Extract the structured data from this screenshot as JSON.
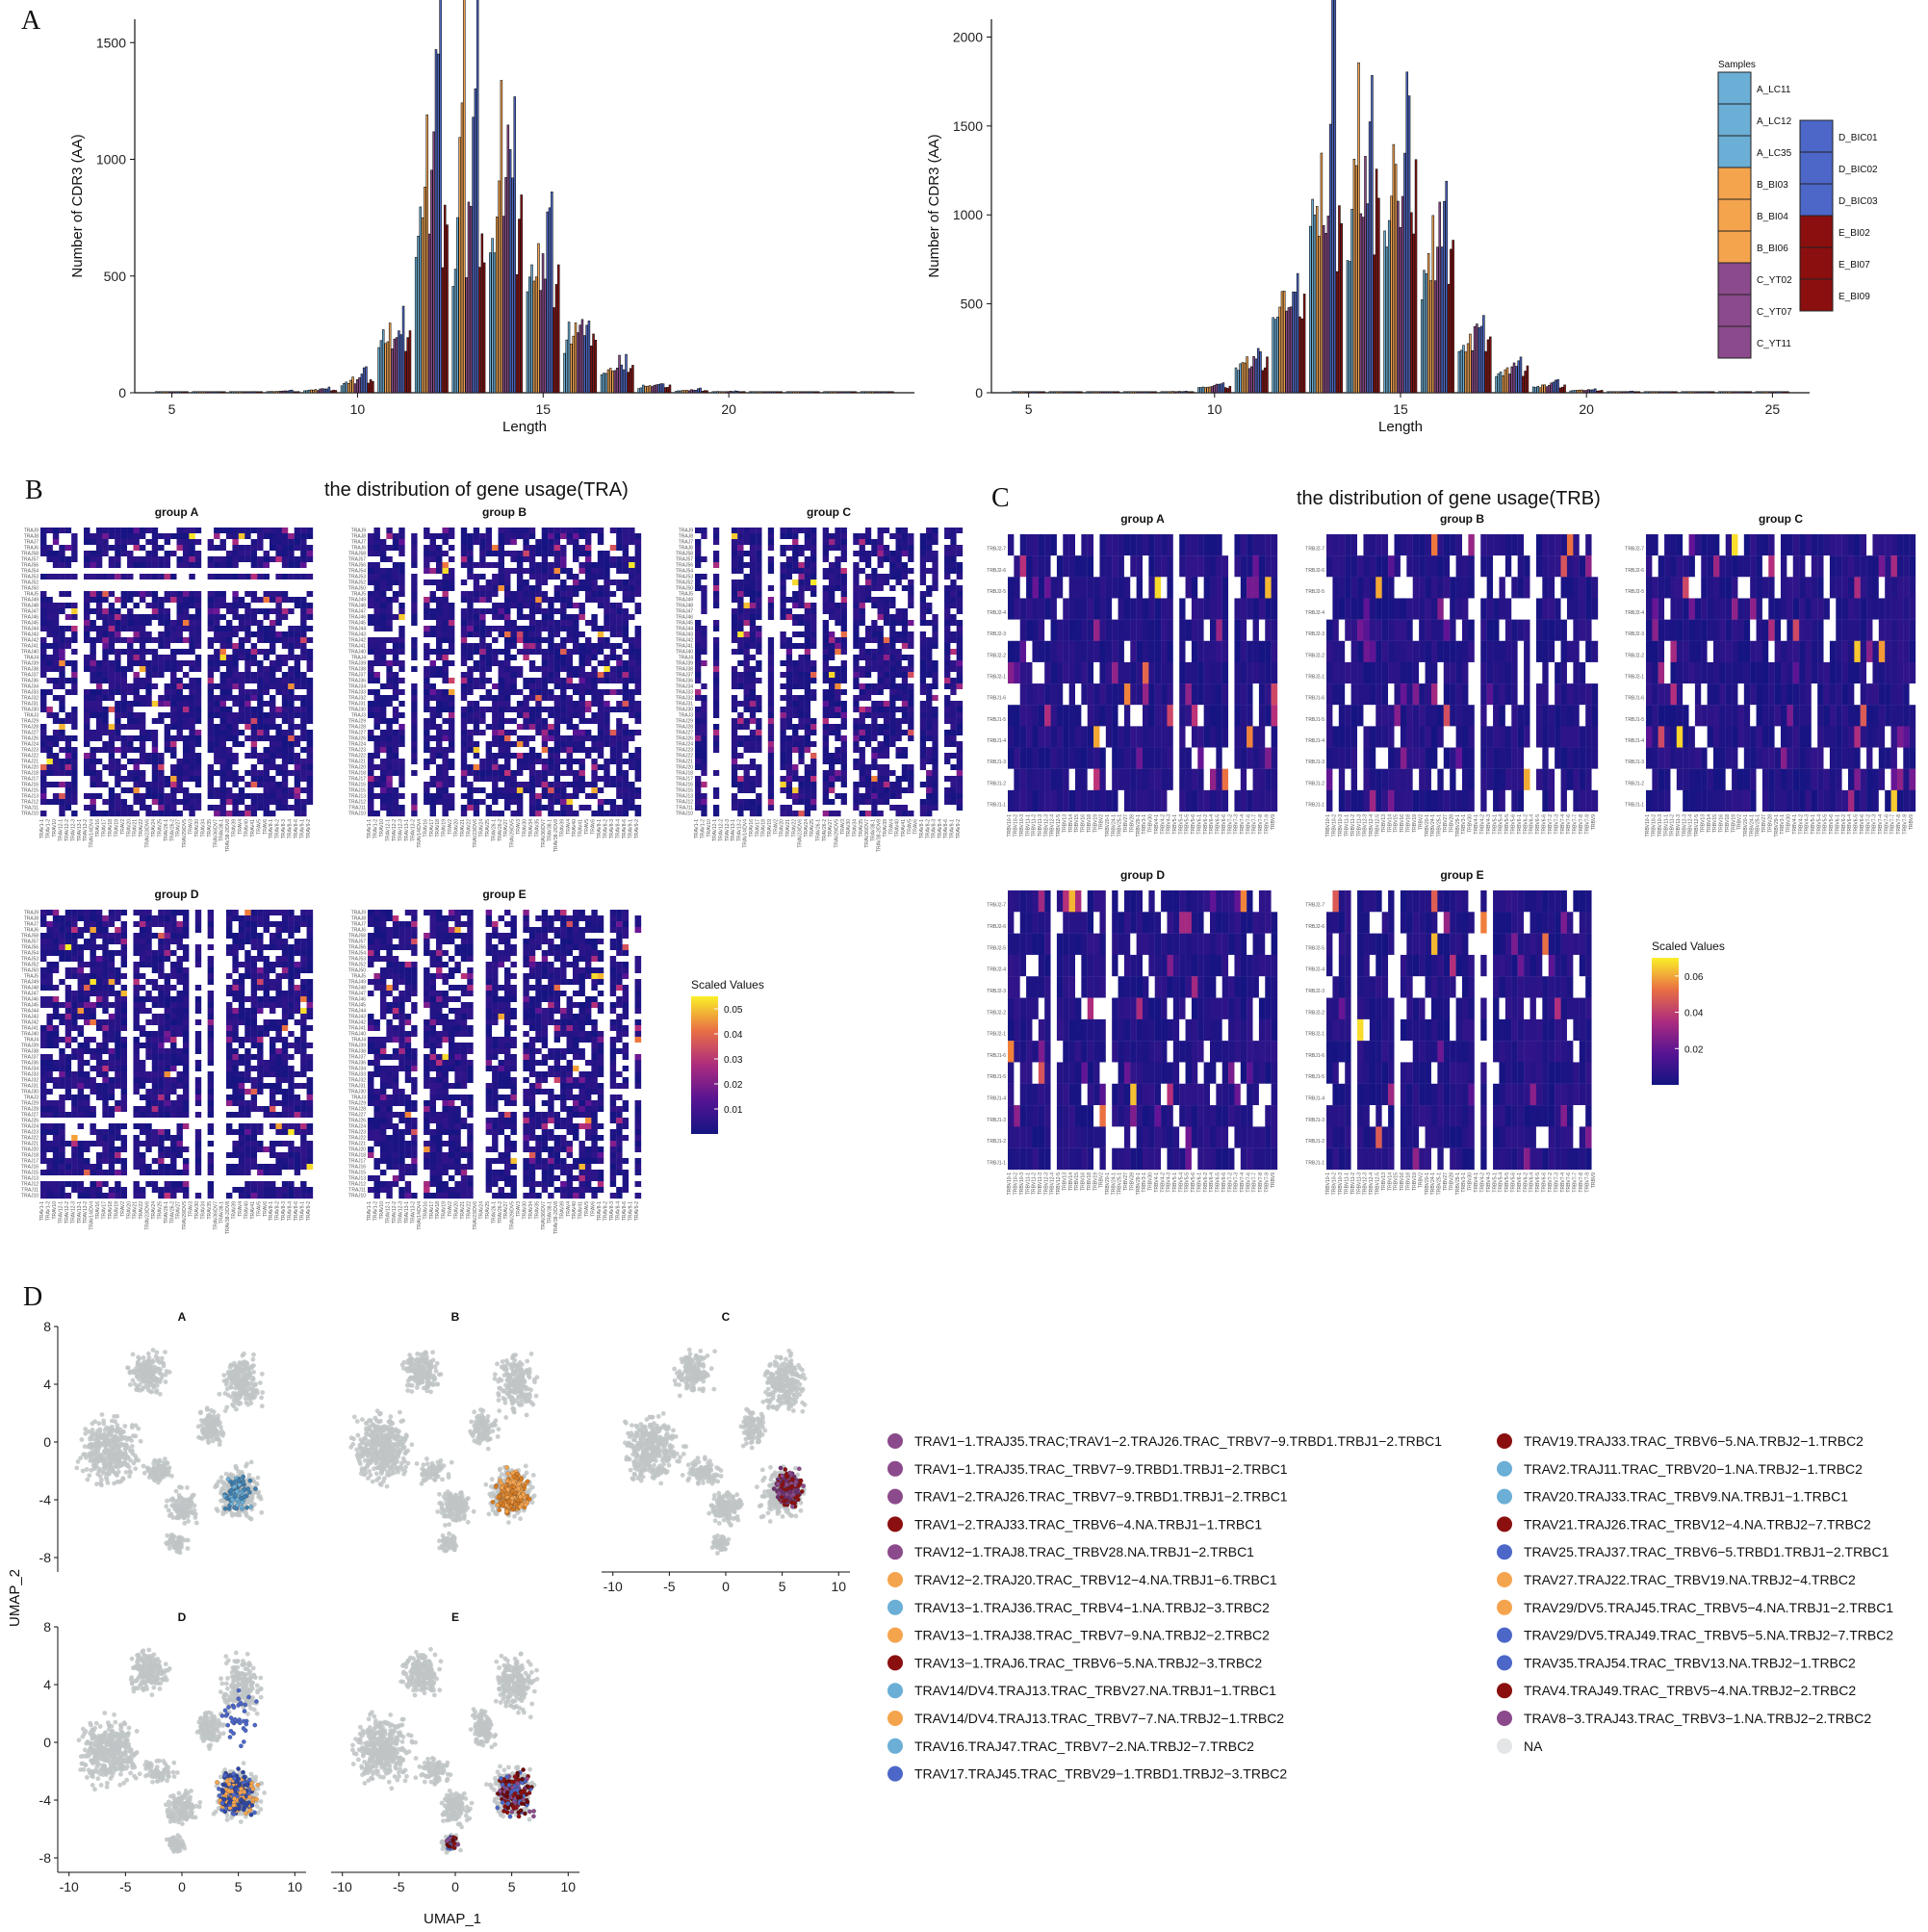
{
  "panel_letters": {
    "a": "A",
    "b": "B",
    "c": "C",
    "d": "D"
  },
  "colors": {
    "A": "#6baed6",
    "B": "#f5a44e",
    "C": "#8b4a8c",
    "D": "#4c67c8",
    "E": "#8b0f0f",
    "A_dark": "#3e7fb0",
    "B_dark": "#d97c22",
    "C_dark": "#6e2f70",
    "D_dark": "#2f46a3",
    "E_dark": "#6a0808",
    "umap_grey": "#bfc4c6",
    "na": "#e3e5e6"
  },
  "chart_data": [
    {
      "id": "cdr3_tra",
      "type": "bar",
      "xlabel": "Length",
      "ylabel": "Number of CDR3 (AA)",
      "xlim": [
        4,
        25
      ],
      "ylim": [
        0,
        1600
      ],
      "xticks": [
        "5",
        "10",
        "15",
        "20"
      ],
      "yticks": [
        "0",
        "500",
        "1000",
        "1500"
      ],
      "group_totals": {
        "lengths": [
          5,
          6,
          7,
          8,
          9,
          10,
          11,
          12,
          13,
          14,
          15,
          16,
          17,
          18,
          19,
          20,
          21,
          22,
          23,
          24
        ],
        "A": [
          0,
          0,
          3,
          5,
          10,
          40,
          200,
          700,
          560,
          600,
          430,
          230,
          90,
          25,
          8,
          4,
          2,
          1,
          0,
          0
        ],
        "B": [
          0,
          0,
          3,
          6,
          12,
          50,
          260,
          900,
          1350,
          1050,
          500,
          240,
          100,
          30,
          10,
          5,
          2,
          1,
          0,
          0
        ],
        "C": [
          0,
          0,
          4,
          8,
          14,
          55,
          250,
          850,
          700,
          900,
          520,
          280,
          120,
          35,
          12,
          6,
          3,
          1,
          0,
          0
        ],
        "D": [
          0,
          0,
          5,
          10,
          20,
          100,
          300,
          1500,
          1350,
          1130,
          830,
          330,
          120,
          40,
          15,
          7,
          3,
          1,
          0,
          0
        ],
        "E": [
          0,
          0,
          2,
          4,
          10,
          50,
          220,
          750,
          600,
          620,
          420,
          230,
          90,
          25,
          8,
          4,
          2,
          1,
          0,
          0
        ]
      }
    },
    {
      "id": "cdr3_trb",
      "type": "bar",
      "xlabel": "Length",
      "ylabel": "Number of CDR3 (AA)",
      "xlim": [
        4,
        26
      ],
      "ylim": [
        0,
        2100
      ],
      "xticks": [
        "5",
        "10",
        "15",
        "20",
        "25"
      ],
      "yticks": [
        "0",
        "500",
        "1000",
        "1500",
        "2000"
      ],
      "group_totals": {
        "lengths": [
          5,
          6,
          7,
          8,
          9,
          10,
          11,
          12,
          13,
          14,
          15,
          16,
          17,
          18,
          19,
          20,
          21,
          22,
          23,
          24,
          25
        ],
        "A": [
          0,
          0,
          1,
          2,
          5,
          30,
          140,
          420,
          1000,
          900,
          950,
          650,
          250,
          100,
          35,
          12,
          5,
          2,
          1,
          0,
          0
        ],
        "B": [
          0,
          0,
          1,
          3,
          6,
          35,
          170,
          520,
          1100,
          1480,
          1240,
          770,
          300,
          120,
          40,
          14,
          6,
          2,
          1,
          0,
          0
        ],
        "C": [
          0,
          0,
          1,
          3,
          6,
          35,
          160,
          500,
          1050,
          1050,
          1150,
          820,
          320,
          130,
          45,
          15,
          6,
          2,
          1,
          0,
          0
        ],
        "D": [
          0,
          0,
          2,
          4,
          8,
          50,
          220,
          700,
          1990,
          1500,
          1520,
          1050,
          420,
          170,
          60,
          20,
          8,
          3,
          1,
          0,
          0
        ],
        "E": [
          0,
          0,
          1,
          2,
          5,
          30,
          150,
          480,
          920,
          1100,
          1040,
          720,
          280,
          110,
          38,
          12,
          5,
          2,
          1,
          0,
          0
        ]
      }
    },
    {
      "id": "gene_usage_tra",
      "type": "heatmap",
      "title": "the distribution of gene usage(TRA)",
      "groups": [
        "group A",
        "group B",
        "group C",
        "group D",
        "group E"
      ],
      "legend_title": "Scaled Values",
      "legend_ticks": [
        "0.05",
        "0.04",
        "0.03",
        "0.02",
        "0.01"
      ],
      "max_value": 0.055,
      "rows": [
        "TRAJ9",
        "TRAJ8",
        "TRAJ7",
        "TRAJ6",
        "TRAJ58",
        "TRAJ57",
        "TRAJ56",
        "TRAJ54",
        "TRAJ53",
        "TRAJ52",
        "TRAJ50",
        "TRAJ5",
        "TRAJ49",
        "TRAJ48",
        "TRAJ47",
        "TRAJ46",
        "TRAJ45",
        "TRAJ44",
        "TRAJ43",
        "TRAJ42",
        "TRAJ41",
        "TRAJ40",
        "TRAJ4",
        "TRAJ39",
        "TRAJ38",
        "TRAJ37",
        "TRAJ36",
        "TRAJ34",
        "TRAJ33",
        "TRAJ32",
        "TRAJ31",
        "TRAJ30",
        "TRAJ3",
        "TRAJ29",
        "TRAJ28",
        "TRAJ27",
        "TRAJ26",
        "TRAJ24",
        "TRAJ23",
        "TRAJ22",
        "TRAJ21",
        "TRAJ20",
        "TRAJ18",
        "TRAJ17",
        "TRAJ16",
        "TRAJ15",
        "TRAJ13",
        "TRAJ12",
        "TRAJ11",
        "TRAJ10"
      ],
      "columns": [
        "TRAV1-1",
        "TRAV1-2",
        "TRAV10",
        "TRAV12-1",
        "TRAV12-2",
        "TRAV12-3",
        "TRAV13-1",
        "TRAV13-2",
        "TRAV14/DV4",
        "TRAV16",
        "TRAV17",
        "TRAV18",
        "TRAV19",
        "TRAV2",
        "TRAV20",
        "TRAV21",
        "TRAV22",
        "TRAV23/DV6",
        "TRAV24",
        "TRAV25",
        "TRAV26-1",
        "TRAV26-2",
        "TRAV27",
        "TRAV29/DV5",
        "TRAV3",
        "TRAV30",
        "TRAV34",
        "TRAV35",
        "TRAV36/DV7",
        "TRAV38-1",
        "TRAV38-2/DV8",
        "TRAV39",
        "TRAV4",
        "TRAV40",
        "TRAV41",
        "TRAV5",
        "TRAV6",
        "TRAV8-1",
        "TRAV8-2",
        "TRAV8-3",
        "TRAV8-4",
        "TRAV8-6",
        "TRAV9-1",
        "TRAV9-2"
      ]
    },
    {
      "id": "gene_usage_trb",
      "type": "heatmap",
      "title": "the distribution of gene usage(TRB)",
      "groups": [
        "group A",
        "group B",
        "group C",
        "group D",
        "group E"
      ],
      "legend_title": "Scaled Values",
      "legend_ticks": [
        "0.06",
        "0.04",
        "0.02"
      ],
      "max_value": 0.07,
      "rows": [
        "TRBJ2-7",
        "TRBJ2-6",
        "TRBJ2-5",
        "TRBJ2-4",
        "TRBJ2-3",
        "TRBJ2-2",
        "TRBJ2-1",
        "TRBJ1-6",
        "TRBJ1-5",
        "TRBJ1-4",
        "TRBJ1-3",
        "TRBJ1-2",
        "TRBJ1-1"
      ],
      "columns": [
        "TRBV10-1",
        "TRBV10-2",
        "TRBV10-3",
        "TRBV11-1",
        "TRBV11-2",
        "TRBV11-3",
        "TRBV12-3",
        "TRBV12-4",
        "TRBV12-5",
        "TRBV13",
        "TRBV14",
        "TRBV15",
        "TRBV16",
        "TRBV18",
        "TRBV19",
        "TRBV2",
        "TRBV20-1",
        "TRBV24-1",
        "TRBV25-1",
        "TRBV27",
        "TRBV28",
        "TRBV29-1",
        "TRBV3-1",
        "TRBV30",
        "TRBV4-1",
        "TRBV4-2",
        "TRBV4-3",
        "TRBV5-1",
        "TRBV5-4",
        "TRBV5-5",
        "TRBV5-6",
        "TRBV6-1",
        "TRBV6-2",
        "TRBV6-4",
        "TRBV6-5",
        "TRBV6-6",
        "TRBV7-2",
        "TRBV7-3",
        "TRBV7-4",
        "TRBV7-6",
        "TRBV7-7",
        "TRBV7-8",
        "TRBV7-9",
        "TRBV9"
      ]
    },
    {
      "id": "umap",
      "type": "scatter",
      "xlabel": "UMAP_1",
      "ylabel": "UMAP_2",
      "xlim": [
        -11,
        11
      ],
      "ylim": [
        -9,
        8
      ],
      "xticks": [
        "-10",
        "-5",
        "0",
        "5",
        "10"
      ],
      "yticks": [
        "8",
        "4",
        "0",
        "-4",
        "-8"
      ],
      "facets": [
        "A",
        "B",
        "C",
        "D",
        "E"
      ]
    }
  ],
  "samples_legend": {
    "title": "Samples",
    "col1": [
      {
        "label": "A_LC11",
        "group": "A"
      },
      {
        "label": "A_LC12",
        "group": "A"
      },
      {
        "label": "A_LC35",
        "group": "A"
      },
      {
        "label": "B_BI03",
        "group": "B"
      },
      {
        "label": "B_BI04",
        "group": "B"
      },
      {
        "label": "B_BI06",
        "group": "B"
      },
      {
        "label": "C_YT02",
        "group": "C"
      },
      {
        "label": "C_YT07",
        "group": "C"
      },
      {
        "label": "C_YT11",
        "group": "C"
      }
    ],
    "col2": [
      {
        "label": "D_BIC01",
        "group": "D"
      },
      {
        "label": "D_BIC02",
        "group": "D"
      },
      {
        "label": "D_BIC03",
        "group": "D"
      },
      {
        "label": "E_BI02",
        "group": "E"
      },
      {
        "label": "E_BI07",
        "group": "E"
      },
      {
        "label": "E_BI09",
        "group": "E"
      }
    ]
  },
  "clonotype_legend": {
    "col1": [
      {
        "label": "TRAV1−1.TRAJ35.TRAC;TRAV1−2.TRAJ26.TRAC_TRBV7−9.TRBD1.TRBJ1−2.TRBC1",
        "group": "C"
      },
      {
        "label": "TRAV1−1.TRAJ35.TRAC_TRBV7−9.TRBD1.TRBJ1−2.TRBC1",
        "group": "C"
      },
      {
        "label": "TRAV1−2.TRAJ26.TRAC_TRBV7−9.TRBD1.TRBJ1−2.TRBC1",
        "group": "C"
      },
      {
        "label": "TRAV1−2.TRAJ33.TRAC_TRBV6−4.NA.TRBJ1−1.TRBC1",
        "group": "E"
      },
      {
        "label": "TRAV12−1.TRAJ8.TRAC_TRBV28.NA.TRBJ1−2.TRBC1",
        "group": "C"
      },
      {
        "label": "TRAV12−2.TRAJ20.TRAC_TRBV12−4.NA.TRBJ1−6.TRBC1",
        "group": "B"
      },
      {
        "label": "TRAV13−1.TRAJ36.TRAC_TRBV4−1.NA.TRBJ2−3.TRBC2",
        "group": "A"
      },
      {
        "label": "TRAV13−1.TRAJ38.TRAC_TRBV7−9.NA.TRBJ2−2.TRBC2",
        "group": "B"
      },
      {
        "label": "TRAV13−1.TRAJ6.TRAC_TRBV6−5.NA.TRBJ2−3.TRBC2",
        "group": "E"
      },
      {
        "label": "TRAV14/DV4.TRAJ13.TRAC_TRBV27.NA.TRBJ1−1.TRBC1",
        "group": "A"
      },
      {
        "label": "TRAV14/DV4.TRAJ13.TRAC_TRBV7−7.NA.TRBJ2−1.TRBC2",
        "group": "B"
      },
      {
        "label": "TRAV16.TRAJ47.TRAC_TRBV7−2.NA.TRBJ2−7.TRBC2",
        "group": "A"
      },
      {
        "label": "TRAV17.TRAJ45.TRAC_TRBV29−1.TRBD1.TRBJ2−3.TRBC2",
        "group": "D"
      }
    ],
    "col2": [
      {
        "label": "TRAV19.TRAJ33.TRAC_TRBV6−5.NA.TRBJ2−1.TRBC2",
        "group": "E"
      },
      {
        "label": "TRAV2.TRAJ11.TRAC_TRBV20−1.NA.TRBJ2−1.TRBC2",
        "group": "A"
      },
      {
        "label": "TRAV20.TRAJ33.TRAC_TRBV9.NA.TRBJ1−1.TRBC1",
        "group": "A"
      },
      {
        "label": "TRAV21.TRAJ26.TRAC_TRBV12−4.NA.TRBJ2−7.TRBC2",
        "group": "E"
      },
      {
        "label": "TRAV25.TRAJ37.TRAC_TRBV6−5.TRBD1.TRBJ1−2.TRBC1",
        "group": "D"
      },
      {
        "label": "TRAV27.TRAJ22.TRAC_TRBV19.NA.TRBJ2−4.TRBC2",
        "group": "B"
      },
      {
        "label": "TRAV29/DV5.TRAJ45.TRAC_TRBV5−4.NA.TRBJ1−2.TRBC1",
        "group": "B"
      },
      {
        "label": "TRAV29/DV5.TRAJ49.TRAC_TRBV5−5.NA.TRBJ2−7.TRBC2",
        "group": "D"
      },
      {
        "label": "TRAV35.TRAJ54.TRAC_TRBV13.NA.TRBJ2−1.TRBC2",
        "group": "D"
      },
      {
        "label": "TRAV4.TRAJ49.TRAC_TRBV5−4.NA.TRBJ2−2.TRBC2",
        "group": "E"
      },
      {
        "label": "TRAV8−3.TRAJ43.TRAC_TRBV3−1.NA.TRBJ2−2.TRBC2",
        "group": "C"
      },
      {
        "label": "NA",
        "group": "na"
      }
    ]
  }
}
